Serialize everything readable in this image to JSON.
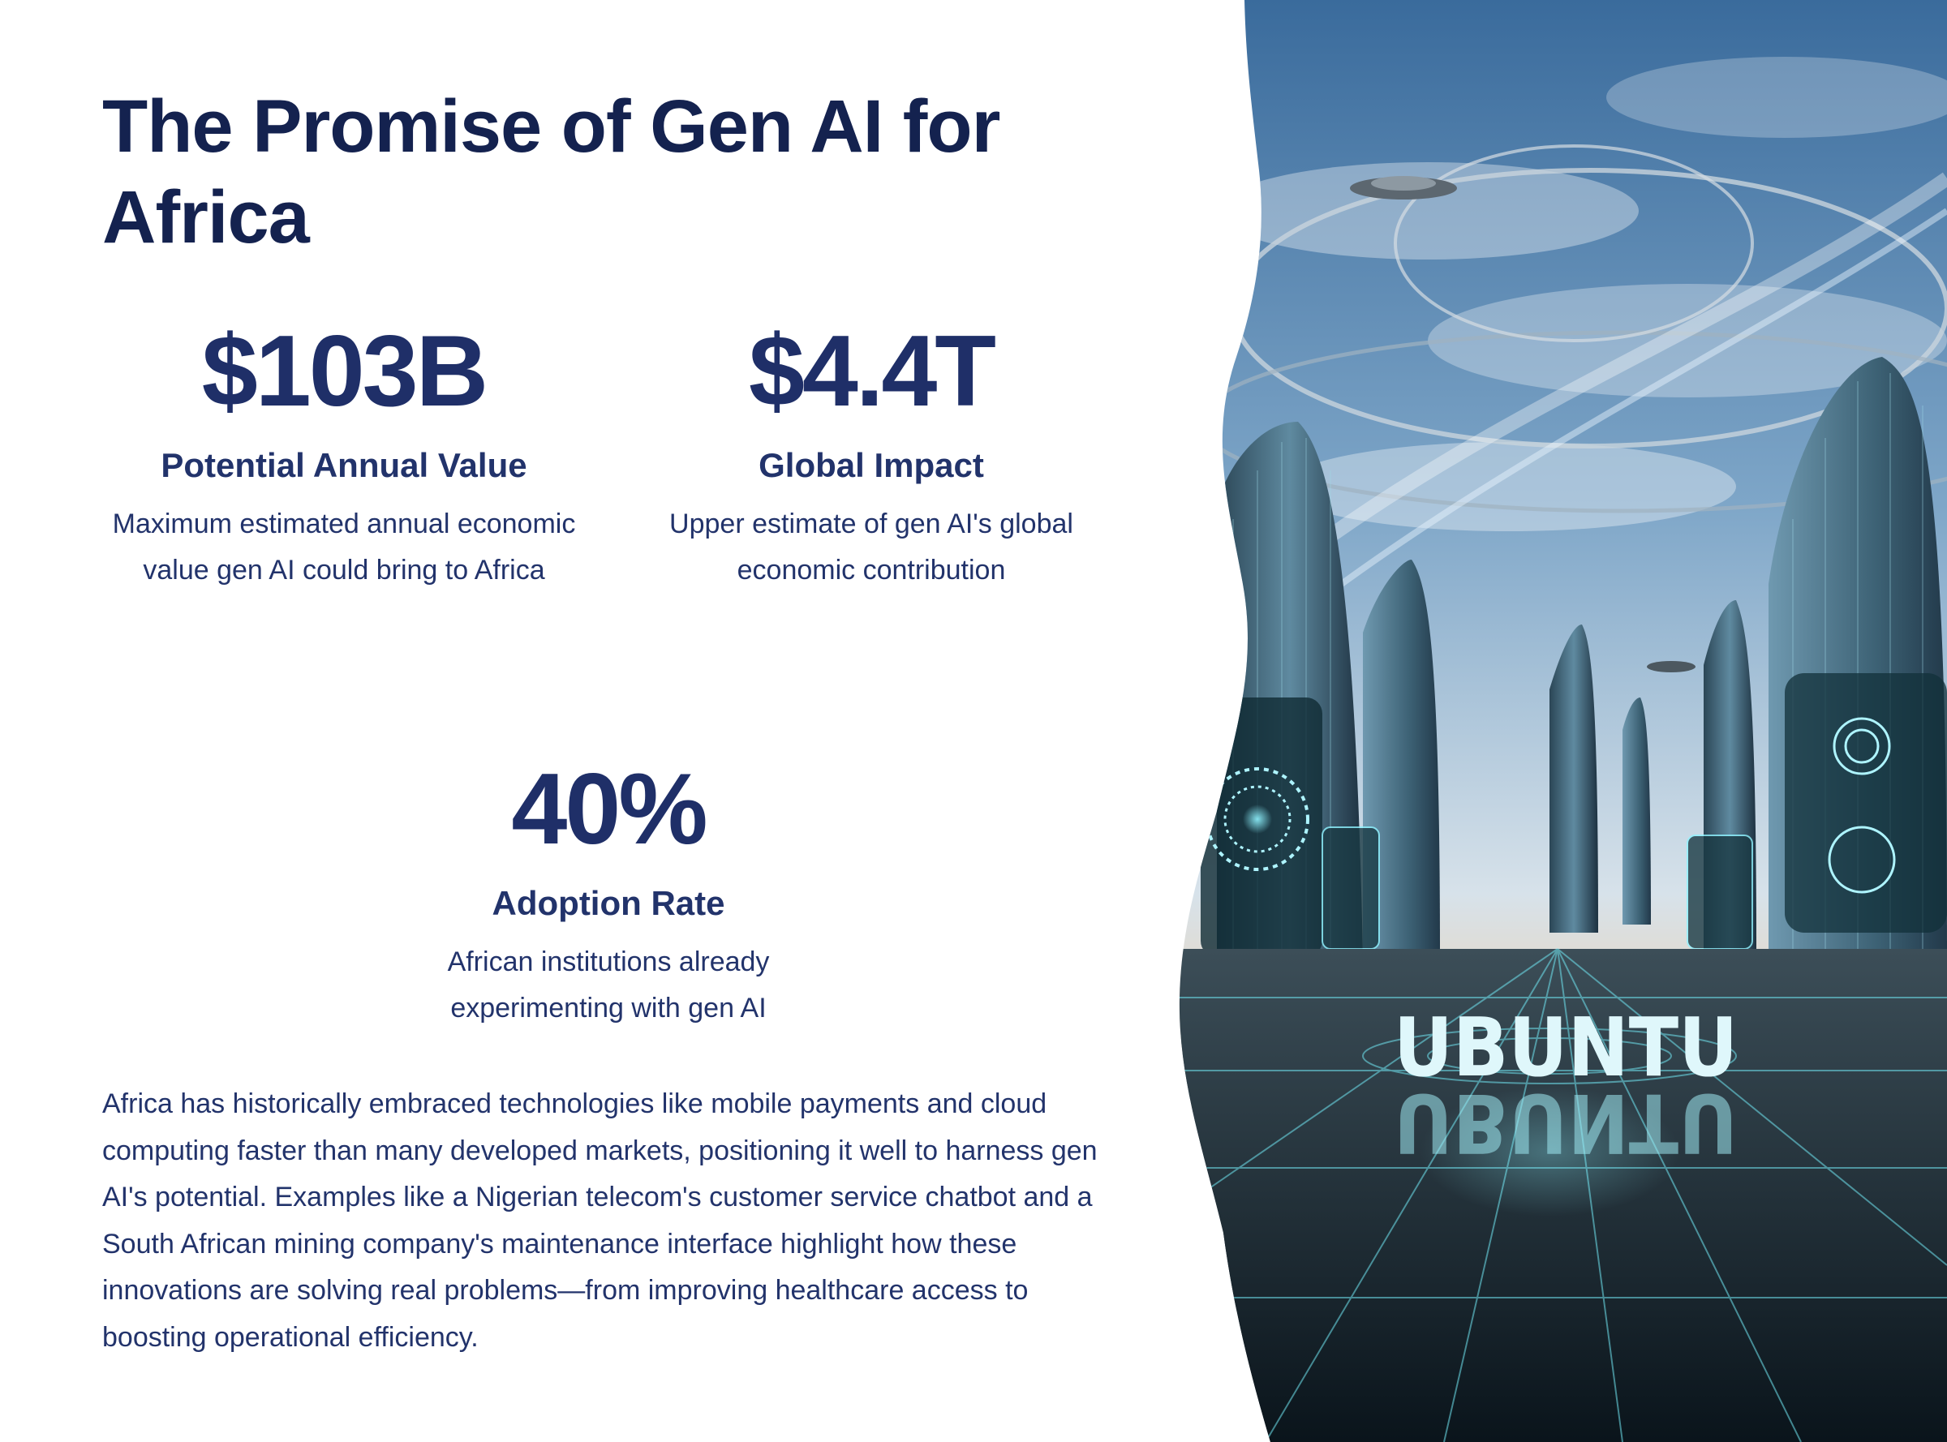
{
  "title": "The Promise of Gen AI for Africa",
  "stats": [
    {
      "value": "$103B",
      "label": "Potential Annual Value",
      "description": "Maximum estimated annual economic value gen AI could bring to Africa"
    },
    {
      "value": "$4.4T",
      "label": "Global Impact",
      "description": "Upper estimate of gen AI's global economic contribution"
    },
    {
      "value": "40%",
      "label": "Adoption Rate",
      "description": "African institutions already experimenting with gen AI"
    }
  ],
  "body": "Africa has historically embraced technologies like mobile payments and cloud computing faster than many developed markets, positioning it well to harness gen AI's potential. Examples like a Nigerian telecom's customer service chatbot and a South African mining company's maintenance interface highlight how these innovations are solving real problems—from improving healthcare access to boosting operational efficiency.",
  "image": {
    "sign_text": "UBUNTU",
    "icon": "futuristic-city-image"
  },
  "colors": {
    "title": "#14224f",
    "text": "#22336b",
    "sky_top": "#3d6fa0",
    "sky_bottom": "#dfe7ee",
    "glow": "#6fe3ef"
  }
}
